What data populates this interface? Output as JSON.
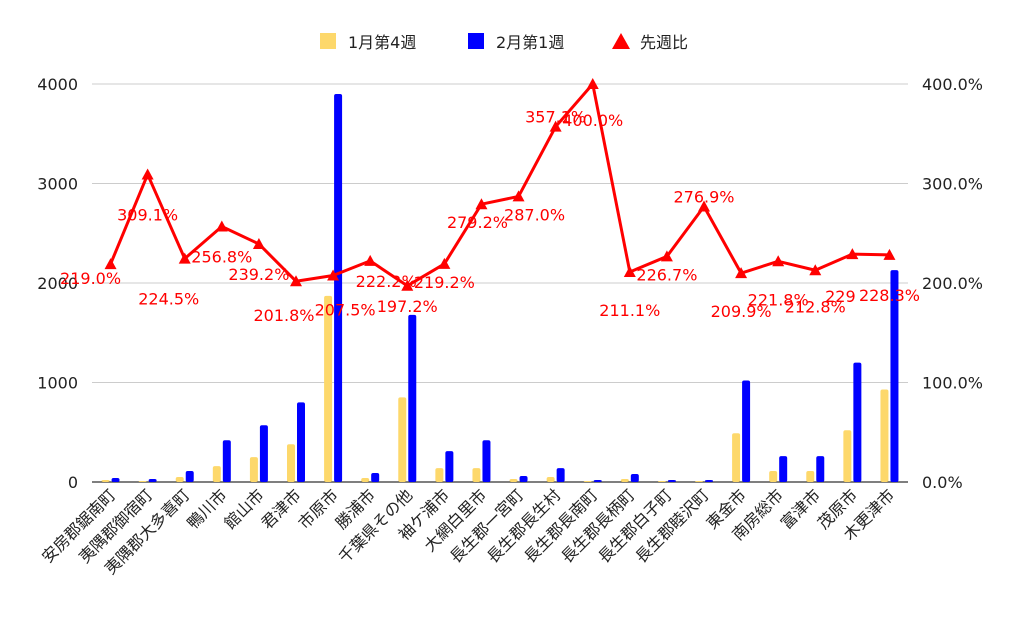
{
  "legend": {
    "items": [
      {
        "label": "1月第4週",
        "color": "#fdd86b"
      },
      {
        "label": "2月第1週",
        "color": "#0000ff"
      },
      {
        "label": "先週比",
        "color": "#ff0000"
      }
    ]
  },
  "chart_data": {
    "type": "bar",
    "categories": [
      "安房郡鋸南町",
      "夷隅郡御宿町",
      "夷隅郡大多喜町",
      "鴨川市",
      "館山市",
      "君津市",
      "市原市",
      "勝浦市",
      "千葉県その他",
      "袖ケ浦市",
      "大網白里市",
      "長生郡一宮町",
      "長生郡長生村",
      "長生郡長南町",
      "長生郡長柄町",
      "長生郡白子町",
      "長生郡睦沢町",
      "東金市",
      "南房総市",
      "富津市",
      "茂原市",
      "木更津市"
    ],
    "series": [
      {
        "name": "1月第4週",
        "type": "bar",
        "axis": "left",
        "color": "#fdd86b",
        "values": [
          20,
          10,
          50,
          160,
          250,
          380,
          1870,
          40,
          850,
          140,
          140,
          30,
          50,
          10,
          30,
          10,
          10,
          490,
          110,
          110,
          520,
          930
        ]
      },
      {
        "name": "2月第1週",
        "type": "bar",
        "axis": "left",
        "color": "#0000ff",
        "values": [
          40,
          30,
          110,
          420,
          570,
          800,
          3900,
          90,
          1680,
          310,
          420,
          60,
          140,
          20,
          80,
          20,
          20,
          1020,
          260,
          260,
          1200,
          2130
        ]
      },
      {
        "name": "先週比",
        "type": "line",
        "axis": "right",
        "color": "#ff0000",
        "values": [
          219.0,
          309.1,
          224.5,
          256.8,
          239.2,
          201.8,
          207.5,
          222.2,
          197.2,
          219.2,
          279.2,
          287.0,
          357.1,
          400.0,
          211.1,
          226.7,
          276.9,
          209.9,
          221.8,
          212.8,
          229,
          228.3
        ],
        "labels": [
          "219.0%",
          "309.1%",
          "224.5%",
          "256.8%",
          "239.2%",
          "201.8%",
          "207.5%",
          "222.2%",
          "197.2%",
          "219.2%",
          "279.2%",
          "287.0%",
          "357.1%",
          "400.0%",
          "211.1%",
          "226.7%",
          "276.9%",
          "209.9%",
          "221.8%",
          "212.8%",
          "229",
          "228.3%"
        ]
      }
    ],
    "y_left": {
      "min": 0,
      "max": 4000,
      "ticks": [
        "0",
        "1000",
        "2000",
        "3000",
        "4000"
      ]
    },
    "y_right": {
      "min": 0,
      "max": 400,
      "ticks": [
        "0.0%",
        "100.0%",
        "200.0%",
        "300.0%",
        "400.0%"
      ]
    },
    "grid": true,
    "legend_position": "top"
  }
}
